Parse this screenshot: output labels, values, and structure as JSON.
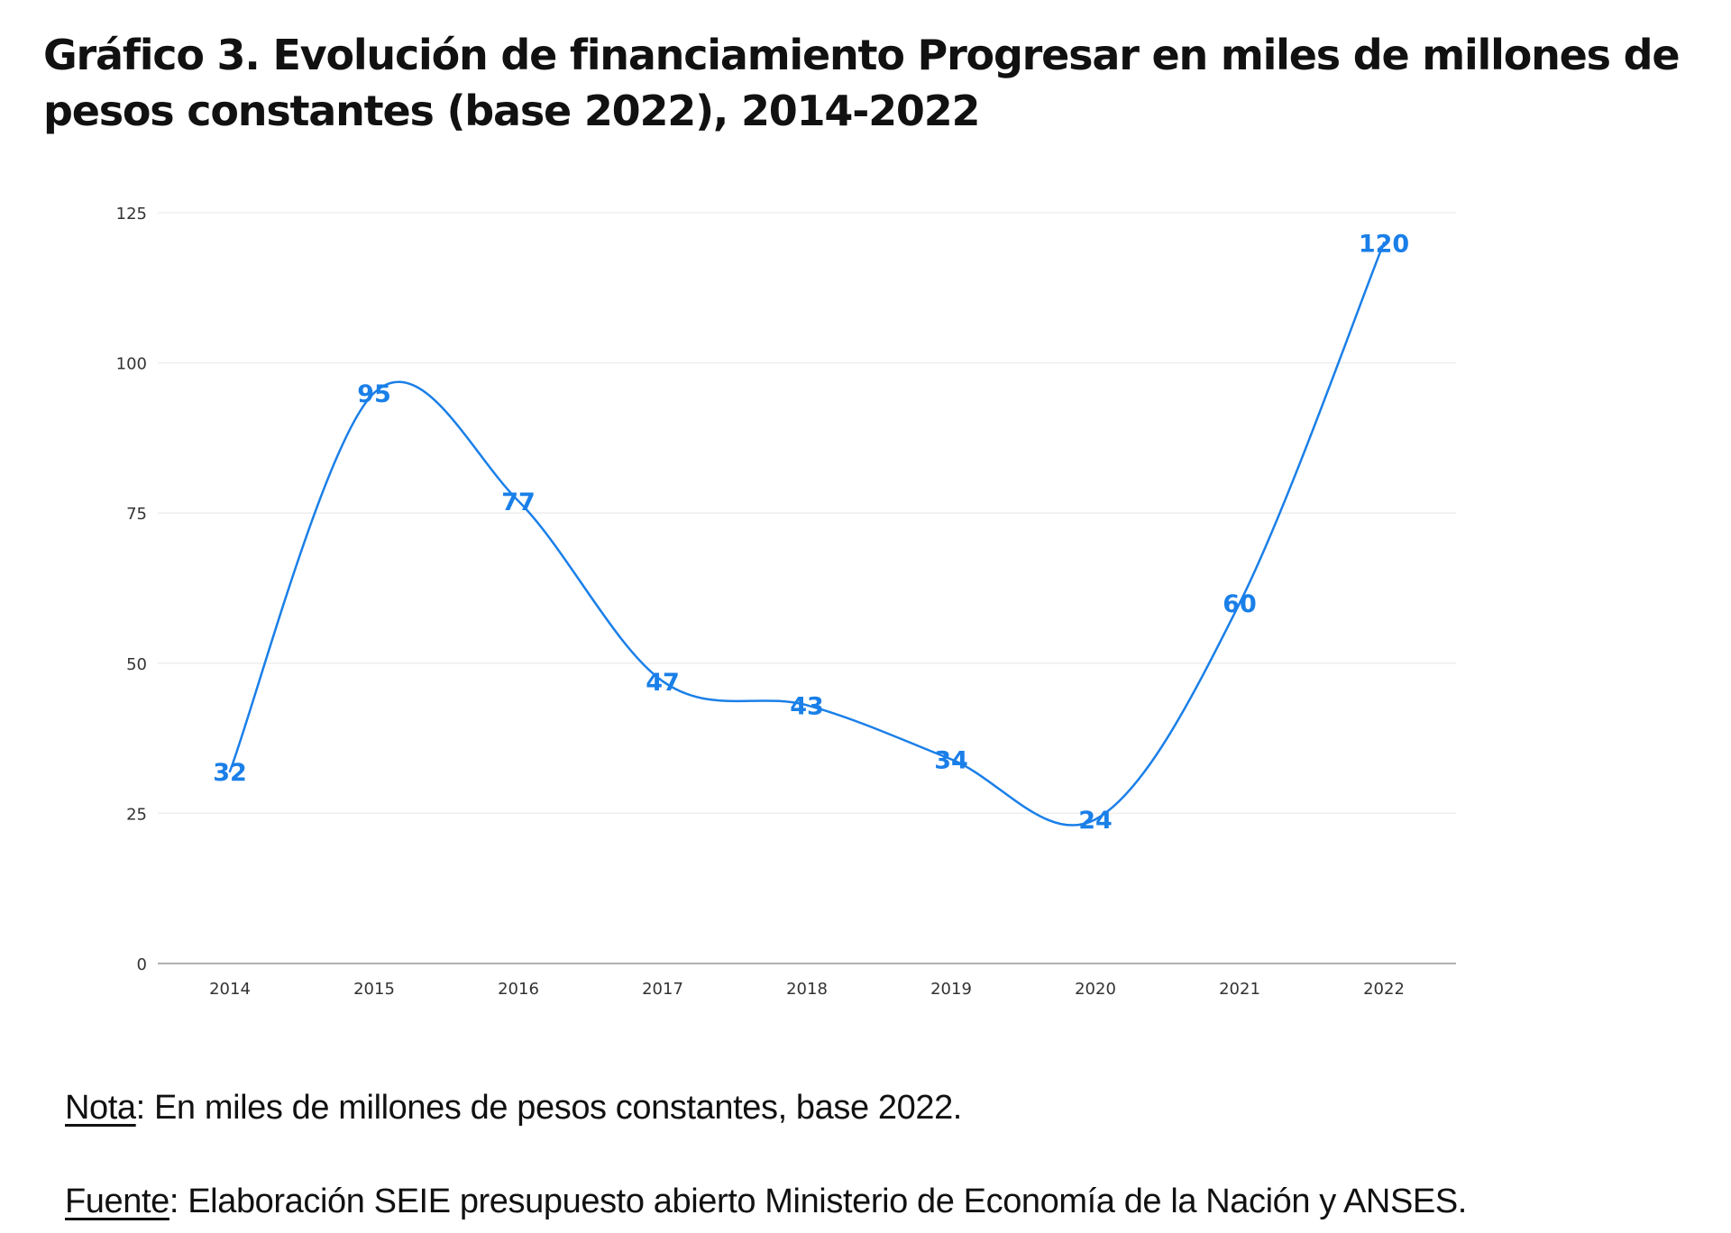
{
  "title": "Gráfico 3. Evolución de financiamiento Progresar en miles de millones de pesos constantes (base 2022), 2014-2022",
  "chart_data": {
    "type": "line",
    "smooth": true,
    "title": "Gráfico 3. Evolución de financiamiento Progresar en miles de millones de pesos constantes (base 2022), 2014-2022",
    "xlabel": "",
    "ylabel": "",
    "categories": [
      "2014",
      "2015",
      "2016",
      "2017",
      "2018",
      "2019",
      "2020",
      "2021",
      "2022"
    ],
    "series": [
      {
        "name": "Financiamiento Progresar",
        "values": [
          32,
          95,
          77,
          47,
          43,
          34,
          24,
          60,
          120
        ],
        "color": "#1a7fe8"
      }
    ],
    "ylim": [
      0,
      125
    ],
    "yticks": [
      0,
      25,
      50,
      75,
      100,
      125
    ],
    "grid": true,
    "legend": "none",
    "colors": {
      "line": "#1a7fe8",
      "label": "#1a7fe8",
      "grid": "#eeeeee",
      "axis": "#b0b0b0",
      "tick_text": "#333333"
    }
  },
  "notes": {
    "nota_label": "Nota",
    "nota_text": ": En miles de millones de pesos constantes, base 2022.",
    "fuente_label": "Fuente",
    "fuente_text": ": Elaboración SEIE presupuesto abierto Ministerio de Economía de la Nación y ANSES."
  }
}
